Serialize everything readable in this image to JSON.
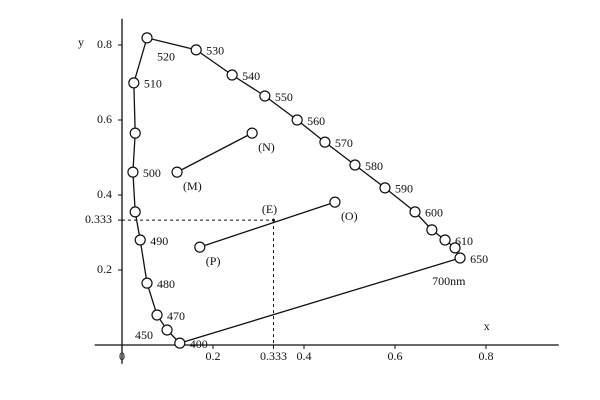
{
  "chart_data": {
    "type": "line",
    "x_label": "x",
    "y_label": "y",
    "xlim": [
      -0.06,
      0.96
    ],
    "ylim": [
      -0.05,
      0.87
    ],
    "xticks": [
      0,
      0.2,
      0.333,
      0.4,
      0.6,
      0.8
    ],
    "yticks": [
      0.2,
      0.333,
      0.4,
      0.6,
      0.8
    ],
    "series": [
      {
        "color": "#111111",
        "x": [
          0.127,
          0.099,
          0.077,
          0.055,
          0.04,
          0.029,
          0.024,
          0.029,
          0.026,
          0.055,
          0.163,
          0.242,
          0.314,
          0.385,
          0.446,
          0.512,
          0.578,
          0.644,
          0.681,
          0.71,
          0.732,
          0.743
        ],
        "y": [
          0.005,
          0.04,
          0.08,
          0.165,
          0.28,
          0.355,
          0.461,
          0.565,
          0.699,
          0.819,
          0.787,
          0.72,
          0.664,
          0.6,
          0.541,
          0.48,
          0.419,
          0.355,
          0.307,
          0.28,
          0.259,
          0.232
        ],
        "labels": [
          "400",
          "450",
          "470",
          "480",
          "490",
          null,
          "500",
          null,
          "510",
          "520",
          "530",
          "540",
          "550",
          "560",
          "570",
          "580",
          "590",
          "600",
          null,
          "610",
          null,
          "650"
        ]
      },
      {
        "color": "#111111",
        "x": [
          0.121,
          0.286
        ],
        "y": [
          0.461,
          0.565
        ],
        "labels": [
          "(M)",
          "(N)"
        ]
      },
      {
        "color": "#111111",
        "x": [
          0.171,
          0.468
        ],
        "y": [
          0.261,
          0.381
        ],
        "labels": [
          "(P)",
          "(O)"
        ]
      }
    ],
    "point": {
      "x": 0.333,
      "y": 0.333,
      "label": "(E)"
    },
    "annotation": "700nm"
  }
}
